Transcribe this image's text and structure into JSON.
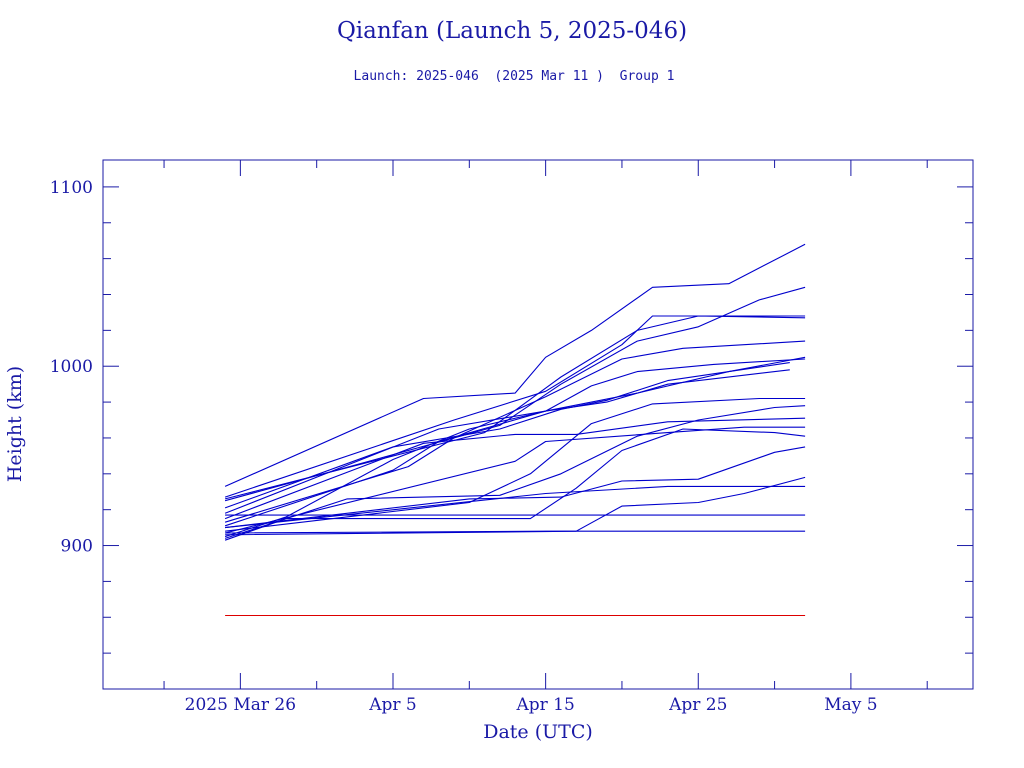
{
  "chart_data": {
    "type": "line",
    "title": "Qianfan (Launch 5, 2025-046)",
    "subtitle": "Launch: 2025-046  (2025 Mar 11 )  Group 1",
    "xlabel": "Date (UTC)",
    "ylabel": "Height (km)",
    "x_unit": "date (UTC)",
    "xlim": [
      "2025-03-17",
      "2025-05-13"
    ],
    "ylim": [
      820,
      1115
    ],
    "x_ticks": [
      {
        "date": "2025-03-26",
        "label": "2025 Mar 26"
      },
      {
        "date": "2025-04-05",
        "label": "Apr  5"
      },
      {
        "date": "2025-04-15",
        "label": "Apr 15"
      },
      {
        "date": "2025-04-25",
        "label": "Apr 25"
      },
      {
        "date": "2025-05-05",
        "label": "May  5"
      }
    ],
    "y_ticks": [
      900,
      1000,
      1100
    ],
    "grid": false,
    "series_color": "#0000cc",
    "reference_color": "#dd0000",
    "series": [
      {
        "points": [
          [
            "2025-03-25",
            933
          ],
          [
            "2025-04-07",
            982
          ],
          [
            "2025-04-13",
            985
          ],
          [
            "2025-04-15",
            1005
          ],
          [
            "2025-04-18",
            1020
          ],
          [
            "2025-04-22",
            1044
          ],
          [
            "2025-04-27",
            1046
          ],
          [
            "2025-05-02",
            1068
          ]
        ]
      },
      {
        "points": [
          [
            "2025-03-25",
            927
          ],
          [
            "2025-04-09",
            970
          ],
          [
            "2025-04-15",
            986
          ],
          [
            "2025-04-20",
            1012
          ],
          [
            "2025-04-22",
            1028
          ],
          [
            "2025-05-02",
            1028
          ]
        ]
      },
      {
        "points": [
          [
            "2025-03-25",
            926
          ],
          [
            "2025-04-11",
            963
          ],
          [
            "2025-04-16",
            994
          ],
          [
            "2025-04-21",
            1020
          ],
          [
            "2025-04-25",
            1028
          ],
          [
            "2025-05-02",
            1027
          ]
        ]
      },
      {
        "points": [
          [
            "2025-03-25",
            925
          ],
          [
            "2025-04-12",
            967
          ],
          [
            "2025-04-16",
            990
          ],
          [
            "2025-04-21",
            1014
          ],
          [
            "2025-04-25",
            1022
          ],
          [
            "2025-04-29",
            1037
          ],
          [
            "2025-05-02",
            1044
          ]
        ]
      },
      {
        "points": [
          [
            "2025-03-25",
            913
          ],
          [
            "2025-04-06",
            944
          ],
          [
            "2025-04-09",
            960
          ],
          [
            "2025-04-15",
            983
          ],
          [
            "2025-04-20",
            1004
          ],
          [
            "2025-04-24",
            1010
          ],
          [
            "2025-05-02",
            1014
          ]
        ]
      },
      {
        "points": [
          [
            "2025-03-25",
            911
          ],
          [
            "2025-04-05",
            942
          ],
          [
            "2025-04-08",
            958
          ],
          [
            "2025-04-15",
            975
          ],
          [
            "2025-04-18",
            989
          ],
          [
            "2025-04-21",
            997
          ],
          [
            "2025-04-26",
            1001
          ],
          [
            "2025-05-02",
            1004
          ]
        ]
      },
      {
        "points": [
          [
            "2025-03-25",
            905
          ],
          [
            "2025-03-29",
            916
          ],
          [
            "2025-04-05",
            948
          ],
          [
            "2025-04-10",
            965
          ],
          [
            "2025-04-15",
            975
          ],
          [
            "2025-04-21",
            985
          ],
          [
            "2025-04-27",
            997
          ],
          [
            "2025-05-02",
            1005
          ]
        ]
      },
      {
        "points": [
          [
            "2025-03-25",
            921
          ],
          [
            "2025-04-05",
            955
          ],
          [
            "2025-04-12",
            965
          ],
          [
            "2025-04-16",
            976
          ],
          [
            "2025-04-19",
            981
          ],
          [
            "2025-04-23",
            992
          ],
          [
            "2025-04-27",
            997
          ],
          [
            "2025-05-01",
            1002
          ]
        ]
      },
      {
        "points": [
          [
            "2025-03-25",
            918
          ],
          [
            "2025-04-08",
            965
          ],
          [
            "2025-04-15",
            975
          ],
          [
            "2025-04-19",
            980
          ],
          [
            "2025-04-23",
            990
          ],
          [
            "2025-04-28",
            995
          ],
          [
            "2025-05-01",
            998
          ]
        ]
      },
      {
        "points": [
          [
            "2025-03-25",
            908
          ],
          [
            "2025-04-10",
            924
          ],
          [
            "2025-04-14",
            940
          ],
          [
            "2025-04-18",
            968
          ],
          [
            "2025-04-22",
            979
          ],
          [
            "2025-04-29",
            982
          ],
          [
            "2025-05-02",
            982
          ]
        ]
      },
      {
        "points": [
          [
            "2025-03-25",
            904
          ],
          [
            "2025-04-02",
            926
          ],
          [
            "2025-04-12",
            928
          ],
          [
            "2025-04-16",
            940
          ],
          [
            "2025-04-21",
            961
          ],
          [
            "2025-04-25",
            970
          ],
          [
            "2025-04-30",
            977
          ],
          [
            "2025-05-02",
            978
          ]
        ]
      },
      {
        "points": [
          [
            "2025-03-25",
            915
          ],
          [
            "2025-04-07",
            957
          ],
          [
            "2025-04-13",
            962
          ],
          [
            "2025-04-17",
            962
          ],
          [
            "2025-04-23",
            969
          ],
          [
            "2025-05-02",
            971
          ]
        ]
      },
      {
        "points": [
          [
            "2025-03-25",
            907
          ],
          [
            "2025-04-13",
            947
          ],
          [
            "2025-04-15",
            958
          ],
          [
            "2025-04-23",
            963
          ],
          [
            "2025-04-28",
            966
          ],
          [
            "2025-05-02",
            966
          ]
        ]
      },
      {
        "points": [
          [
            "2025-03-25",
            903
          ],
          [
            "2025-03-29",
            915
          ],
          [
            "2025-04-14",
            915
          ],
          [
            "2025-04-17",
            932
          ],
          [
            "2025-04-20",
            953
          ],
          [
            "2025-04-24",
            965
          ],
          [
            "2025-04-30",
            963
          ],
          [
            "2025-05-02",
            961
          ]
        ]
      },
      {
        "points": [
          [
            "2025-03-25",
            910
          ],
          [
            "2025-04-10",
            926
          ],
          [
            "2025-04-16",
            927
          ],
          [
            "2025-04-20",
            936
          ],
          [
            "2025-04-25",
            937
          ],
          [
            "2025-04-30",
            952
          ],
          [
            "2025-05-02",
            955
          ]
        ]
      },
      {
        "points": [
          [
            "2025-03-25",
            906
          ],
          [
            "2025-04-17",
            908
          ],
          [
            "2025-04-20",
            922
          ],
          [
            "2025-04-25",
            924
          ],
          [
            "2025-04-28",
            929
          ],
          [
            "2025-05-02",
            938
          ]
        ]
      },
      {
        "points": [
          [
            "2025-03-25",
            910
          ],
          [
            "2025-04-15",
            929
          ],
          [
            "2025-04-23",
            933
          ],
          [
            "2025-05-02",
            933
          ]
        ]
      },
      {
        "points": [
          [
            "2025-03-25",
            917
          ],
          [
            "2025-04-16",
            917
          ],
          [
            "2025-05-02",
            917
          ]
        ]
      },
      {
        "points": [
          [
            "2025-03-25",
            907
          ],
          [
            "2025-04-15",
            908
          ],
          [
            "2025-05-02",
            908
          ]
        ]
      }
    ],
    "reference_line": {
      "value": 861,
      "x_start": "2025-03-25",
      "x_end": "2025-05-02"
    }
  }
}
